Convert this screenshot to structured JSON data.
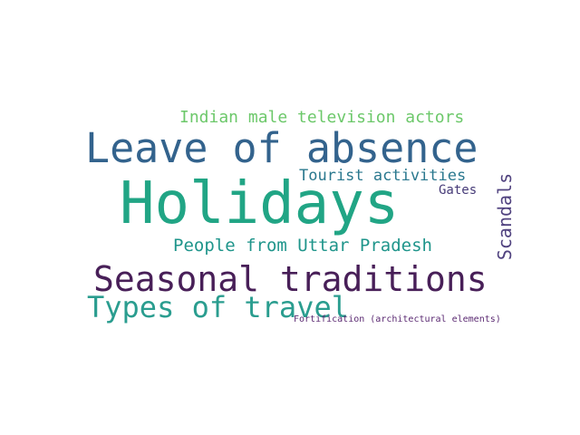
{
  "words": [
    {
      "text": "Indian male television actors",
      "color": "#6cc86a"
    },
    {
      "text": "Leave of absence",
      "color": "#33638d"
    },
    {
      "text": "Tourist activities",
      "color": "#2a788e"
    },
    {
      "text": "Scandals",
      "color": "#50427f"
    },
    {
      "text": "Gates",
      "color": "#463b78"
    },
    {
      "text": "Holidays",
      "color": "#21a585"
    },
    {
      "text": "People from Uttar Pradesh",
      "color": "#1f958b"
    },
    {
      "text": "Seasonal traditions",
      "color": "#481f58"
    },
    {
      "text": "Types of travel",
      "color": "#2a9d8f"
    },
    {
      "text": "Fortification (architectural elements)",
      "color": "#5b2a72"
    }
  ]
}
